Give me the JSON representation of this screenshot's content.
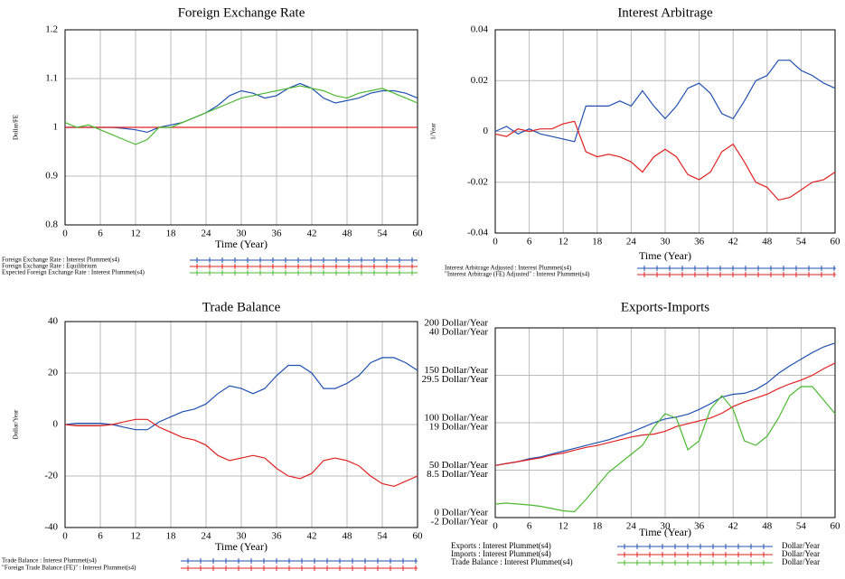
{
  "chart_data": [
    {
      "type": "line",
      "title": "Foreign Exchange Rate",
      "x_label": "Time (Year)",
      "y_label": "Dollar/FE",
      "x": [
        0,
        2,
        4,
        6,
        8,
        10,
        12,
        14,
        16,
        18,
        20,
        22,
        24,
        26,
        28,
        30,
        32,
        34,
        36,
        38,
        40,
        42,
        44,
        46,
        48,
        50,
        52,
        54,
        56,
        58,
        60
      ],
      "xlim": [
        0,
        60
      ],
      "xticks": [
        0,
        6,
        12,
        18,
        24,
        30,
        36,
        42,
        48,
        54,
        60
      ],
      "ylim": [
        0.8,
        1.2
      ],
      "yticks": [
        0.8,
        0.9,
        1,
        1.1,
        1.2
      ],
      "grid": true,
      "series": [
        {
          "name": "Foreign Exchange Rate : Interest Plummet(s4)",
          "color": "#2050b0",
          "values": [
            1.0,
            1.0,
            1.0,
            1.0,
            1.0,
            0.998,
            0.995,
            0.99,
            1.0,
            1.005,
            1.01,
            1.02,
            1.03,
            1.045,
            1.065,
            1.075,
            1.07,
            1.06,
            1.065,
            1.08,
            1.09,
            1.08,
            1.06,
            1.05,
            1.055,
            1.06,
            1.07,
            1.075,
            1.075,
            1.07,
            1.06
          ]
        },
        {
          "name": "Foreign Exchange Rate : Equilibrium",
          "color": "#e02020",
          "values": [
            1,
            1,
            1,
            1,
            1,
            1,
            1,
            1,
            1,
            1,
            1,
            1,
            1,
            1,
            1,
            1,
            1,
            1,
            1,
            1,
            1,
            1,
            1,
            1,
            1,
            1,
            1,
            1,
            1,
            1,
            1
          ]
        },
        {
          "name": "Expected Foreign Exchange Rate : Interest Plummet(s4)",
          "color": "#4cb830",
          "values": [
            1.01,
            1.0,
            1.005,
            0.995,
            0.985,
            0.975,
            0.965,
            0.975,
            1.0,
            1.0,
            1.01,
            1.02,
            1.03,
            1.04,
            1.05,
            1.06,
            1.065,
            1.07,
            1.075,
            1.08,
            1.085,
            1.08,
            1.075,
            1.065,
            1.06,
            1.07,
            1.075,
            1.08,
            1.07,
            1.06,
            1.05
          ]
        }
      ]
    },
    {
      "type": "line",
      "title": "Interest Arbitrage",
      "x_label": "Time (Year)",
      "y_label": "1/Year",
      "x": [
        0,
        2,
        4,
        6,
        8,
        10,
        12,
        14,
        16,
        18,
        20,
        22,
        24,
        26,
        28,
        30,
        32,
        34,
        36,
        38,
        40,
        42,
        44,
        46,
        48,
        50,
        52,
        54,
        56,
        58,
        60
      ],
      "xlim": [
        0,
        60
      ],
      "xticks": [
        0,
        6,
        12,
        18,
        24,
        30,
        36,
        42,
        48,
        54,
        60
      ],
      "ylim": [
        -0.04,
        0.04
      ],
      "yticks": [
        -0.04,
        -0.02,
        0,
        0.02,
        0.04
      ],
      "grid": true,
      "series": [
        {
          "name": "Interest Arbitrage Adjusted : Interest Plummet(s4)",
          "color": "#2050b0",
          "values": [
            0,
            0.002,
            -0.001,
            0.001,
            -0.001,
            -0.002,
            -0.003,
            -0.004,
            0.01,
            0.01,
            0.01,
            0.012,
            0.01,
            0.016,
            0.01,
            0.005,
            0.01,
            0.017,
            0.019,
            0.015,
            0.007,
            0.005,
            0.012,
            0.02,
            0.022,
            0.028,
            0.028,
            0.024,
            0.022,
            0.019,
            0.017
          ]
        },
        {
          "name": "\"Interest Arbitrage (FE) Adjusted\" : Interest Plummet(s4)",
          "color": "#e02020",
          "values": [
            -0.001,
            -0.002,
            0.001,
            0,
            0.001,
            0.001,
            0.003,
            0.004,
            -0.008,
            -0.01,
            -0.009,
            -0.01,
            -0.012,
            -0.016,
            -0.01,
            -0.007,
            -0.01,
            -0.017,
            -0.019,
            -0.016,
            -0.008,
            -0.005,
            -0.012,
            -0.02,
            -0.022,
            -0.027,
            -0.026,
            -0.023,
            -0.02,
            -0.019,
            -0.016
          ]
        }
      ]
    },
    {
      "type": "line",
      "title": "Trade Balance",
      "x_label": "Time (Year)",
      "y_label": "Dollar/Year",
      "x": [
        0,
        2,
        4,
        6,
        8,
        10,
        12,
        14,
        16,
        18,
        20,
        22,
        24,
        26,
        28,
        30,
        32,
        34,
        36,
        38,
        40,
        42,
        44,
        46,
        48,
        50,
        52,
        54,
        56,
        58,
        60
      ],
      "xlim": [
        0,
        60
      ],
      "xticks": [
        0,
        6,
        12,
        18,
        24,
        30,
        36,
        42,
        48,
        54,
        60
      ],
      "ylim": [
        -40,
        40
      ],
      "yticks": [
        -40,
        -20,
        0,
        20,
        40
      ],
      "grid": true,
      "series": [
        {
          "name": "Trade Balance : Interest Plummet(s4)",
          "color": "#2050b0",
          "values": [
            0,
            0.5,
            0.5,
            0.5,
            0,
            -1,
            -2,
            -2,
            1,
            3,
            5,
            6,
            8,
            12,
            15,
            14,
            12,
            14,
            19,
            23,
            23,
            20,
            14,
            14,
            16,
            19,
            24,
            26,
            26,
            24,
            21
          ]
        },
        {
          "name": "\"Foreign Trade Balance (FE)\" : Interest Plummet(s4)",
          "color": "#e02020",
          "values": [
            0,
            -0.5,
            -0.5,
            -0.5,
            0,
            1,
            2,
            2,
            -1,
            -3,
            -5,
            -6,
            -8,
            -12,
            -14,
            -13,
            -12,
            -13,
            -17,
            -20,
            -21,
            -19,
            -14,
            -13,
            -14,
            -16,
            -20,
            -23,
            -24,
            -22,
            -20
          ]
        }
      ]
    },
    {
      "type": "line",
      "title": "Exports-Imports",
      "x_label": "Time (Year)",
      "x": [
        0,
        2,
        4,
        6,
        8,
        10,
        12,
        14,
        16,
        18,
        20,
        22,
        24,
        26,
        28,
        30,
        32,
        34,
        36,
        38,
        40,
        42,
        44,
        46,
        48,
        50,
        52,
        54,
        56,
        58,
        60
      ],
      "xlim": [
        0,
        60
      ],
      "xticks": [
        0,
        6,
        12,
        18,
        24,
        30,
        36,
        42,
        48,
        54,
        60
      ],
      "ylim": [
        0,
        200
      ],
      "yticks": [
        {
          "value": 0,
          "label": "0   Dollar/Year"
        },
        {
          "value": 50,
          "label": "50   Dollar/Year"
        },
        {
          "value": 100,
          "label": "100   Dollar/Year"
        },
        {
          "value": 150,
          "label": "150   Dollar/Year"
        },
        {
          "value": 200,
          "label": "200   Dollar/Year"
        }
      ],
      "y2lim": [
        -2,
        40
      ],
      "y2ticks": [
        {
          "value": -2,
          "label": "-2   Dollar/Year"
        },
        {
          "value": 8.5,
          "label": "8.5   Dollar/Year"
        },
        {
          "value": 19,
          "label": "19   Dollar/Year"
        },
        {
          "value": 29.5,
          "label": "29.5   Dollar/Year"
        },
        {
          "value": 40,
          "label": "40   Dollar/Year"
        }
      ],
      "grid": true,
      "series": [
        {
          "name": "Exports : Interest Plummet(s4)",
          "color": "#2050b0",
          "unit": "Dollar/Year",
          "values": [
            55,
            57,
            59,
            62,
            64,
            67,
            70,
            73,
            76,
            79,
            82,
            86,
            90,
            95,
            100,
            104,
            106,
            109,
            114,
            120,
            127,
            130,
            131,
            135,
            142,
            152,
            160,
            167,
            174,
            180,
            184
          ]
        },
        {
          "name": "Imports : Interest Plummet(s4)",
          "color": "#e02020",
          "unit": "Dollar/Year",
          "values": [
            55,
            57,
            59,
            61,
            63,
            66,
            68,
            71,
            74,
            76,
            79,
            82,
            85,
            87,
            88,
            91,
            96,
            99,
            102,
            105,
            110,
            117,
            122,
            126,
            130,
            136,
            141,
            145,
            150,
            157,
            163
          ]
        },
        {
          "name": "Trade Balance : Interest Plummet(s4)",
          "color": "#4cb830",
          "unit": "Dollar/Year",
          "axis": "y2",
          "values": [
            1,
            1.2,
            1,
            0.8,
            0.5,
            0,
            -0.5,
            -0.7,
            2,
            5,
            8,
            10,
            12,
            14,
            18,
            21,
            20,
            13,
            15,
            22,
            25,
            22,
            15,
            14,
            16,
            20,
            25,
            27,
            27,
            24,
            21
          ]
        }
      ]
    }
  ]
}
